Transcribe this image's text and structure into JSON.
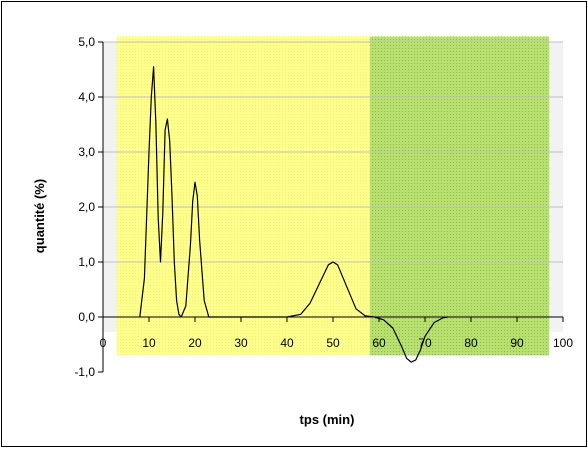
{
  "chart_data": {
    "type": "line",
    "title": "",
    "xlabel": "tps (min)",
    "ylabel": "quantité (%)",
    "xlim": [
      0,
      100
    ],
    "ylim": [
      -1.0,
      5.0
    ],
    "x_ticks": [
      "0",
      "10",
      "20",
      "30",
      "40",
      "50",
      "60",
      "70",
      "80",
      "90",
      "100"
    ],
    "x_tick_values": [
      0,
      10,
      20,
      30,
      40,
      50,
      60,
      70,
      80,
      90,
      100
    ],
    "y_ticks": [
      "-1,0",
      "0,0",
      "1,0",
      "2,0",
      "3,0",
      "4,0",
      "5,0"
    ],
    "y_tick_values": [
      -1,
      0,
      1,
      2,
      3,
      4,
      5
    ],
    "grid": true,
    "legend": "none",
    "regions": [
      {
        "x_from": 3,
        "x_to": 58,
        "y_from": -0.7,
        "y_to": 5.1,
        "color": "#ffff99"
      },
      {
        "x_from": 58,
        "x_to": 97,
        "y_from": -0.7,
        "y_to": 5.1,
        "color": "#99cc33"
      }
    ],
    "series": [
      {
        "color": "#000000",
        "x": [
          8,
          9,
          10,
          10.5,
          11,
          11.5,
          12,
          12.5,
          13,
          13.5,
          14,
          14.5,
          15,
          15.5,
          16,
          16.5,
          17,
          18,
          19,
          19.5,
          20,
          20.5,
          21,
          22,
          23,
          25,
          30,
          40,
          43,
          45,
          47,
          49,
          50,
          51,
          53,
          55,
          57,
          59,
          61,
          63,
          65,
          66,
          67,
          68,
          69,
          70,
          72,
          74,
          75
        ],
        "y": [
          0.0,
          0.7,
          3.0,
          4.0,
          4.55,
          3.5,
          1.8,
          1.0,
          1.9,
          3.4,
          3.6,
          3.2,
          2.2,
          1.0,
          0.3,
          0.05,
          0.0,
          0.2,
          1.3,
          2.1,
          2.45,
          2.2,
          1.4,
          0.3,
          0.0,
          0.0,
          0.0,
          0.0,
          0.05,
          0.25,
          0.6,
          0.95,
          1.0,
          0.95,
          0.55,
          0.15,
          0.02,
          0.0,
          -0.05,
          -0.2,
          -0.55,
          -0.75,
          -0.82,
          -0.78,
          -0.6,
          -0.35,
          -0.1,
          -0.01,
          0.0
        ]
      }
    ]
  }
}
